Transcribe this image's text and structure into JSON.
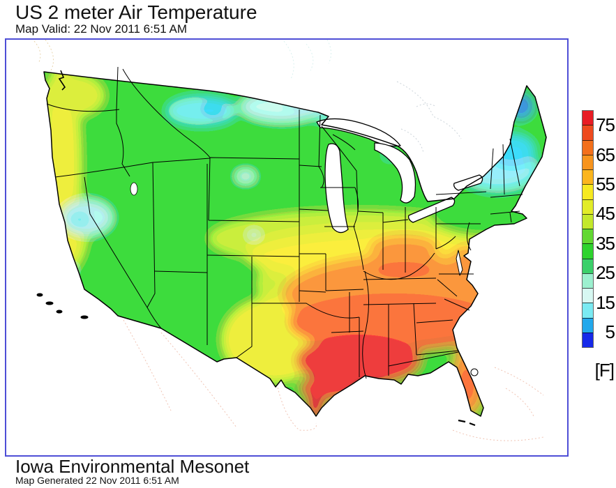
{
  "header": {
    "title": "US 2 meter Air Temperature",
    "subtitle": "Map Valid: 22 Nov 2011 6:51 AM"
  },
  "footer": {
    "title": "Iowa Environmental Mesonet",
    "subtitle": "Map Generated 22 Nov 2011 6:51 AM"
  },
  "legend": {
    "unit_label": "[F]",
    "ticks": [
      "75",
      "65",
      "55",
      "45",
      "35",
      "25",
      "15",
      "5"
    ],
    "segment_colors": [
      "#e81c24",
      "#ee4a1e",
      "#f3701b",
      "#f7941d",
      "#fbb51e",
      "#f6e920",
      "#e2ec28",
      "#c3e82b",
      "#62d832",
      "#2ed32e",
      "#3bd06a",
      "#9cf0cf",
      "#d7f8f2",
      "#7aeaf2",
      "#22a8ec",
      "#1629e9"
    ]
  },
  "map": {
    "frame_color": "#4e4ed6",
    "land_base_color": "#3bd83b",
    "hot_region_color": "#e81c24",
    "cold_region_color": "#2095e9",
    "water_color": "#ffffff"
  }
}
